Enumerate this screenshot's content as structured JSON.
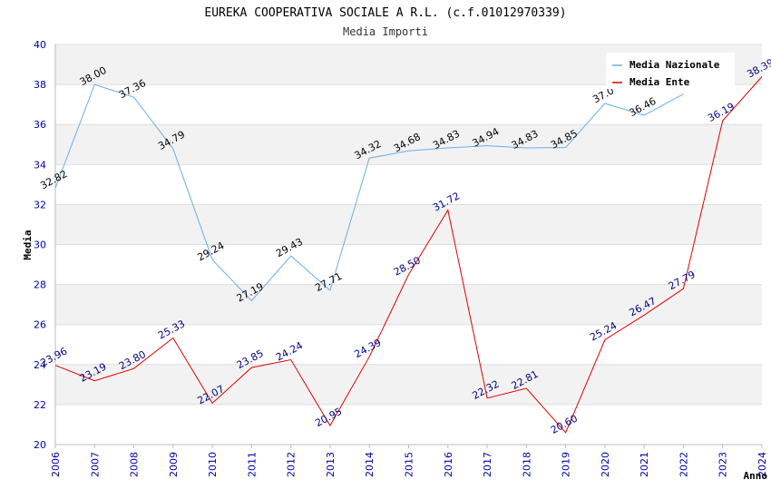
{
  "chart_data": {
    "type": "line",
    "title": "EUREKA COOPERATIVA SOCIALE A R.L. (c.f.01012970339)",
    "subtitle": "Media Importi",
    "xlabel": "Anno",
    "ylabel": "Media",
    "ylim": [
      20,
      40
    ],
    "yticks": [
      "20",
      "22",
      "24",
      "26",
      "28",
      "30",
      "32",
      "34",
      "36",
      "38",
      "40"
    ],
    "x": [
      "2006",
      "2007",
      "2008",
      "2009",
      "2010",
      "2011",
      "2012",
      "2013",
      "2014",
      "2015",
      "2016",
      "2017",
      "2018",
      "2019",
      "2020",
      "2021",
      "2022",
      "2023",
      "2024"
    ],
    "legend_position": "top-right",
    "series": [
      {
        "name": "Media Nazionale",
        "color": "#6aaee6",
        "label_color": "#000000",
        "values": [
          32.82,
          38.0,
          37.36,
          34.79,
          29.24,
          27.19,
          29.43,
          27.71,
          34.32,
          34.68,
          34.83,
          34.94,
          34.83,
          34.85,
          37.05,
          36.46,
          37.52,
          null,
          null
        ],
        "labels": [
          "32.82",
          "38.00",
          "37.36",
          "34.79",
          "29.24",
          "27.19",
          "29.43",
          "27.71",
          "34.32",
          "34.68",
          "34.83",
          "34.94",
          "34.83",
          "34.85",
          "37.0",
          "36.46",
          "",
          "",
          ""
        ]
      },
      {
        "name": "Media Ente",
        "color": "#e00000",
        "label_color": "#000080",
        "values": [
          23.96,
          23.19,
          23.8,
          25.33,
          22.07,
          23.85,
          24.24,
          20.95,
          24.39,
          28.5,
          31.72,
          22.32,
          22.81,
          20.6,
          25.24,
          26.47,
          27.79,
          36.19,
          38.39
        ],
        "labels": [
          "23.96",
          "23.19",
          "23.80",
          "25.33",
          "22.07",
          "23.85",
          "24.24",
          "20.95",
          "24.39",
          "28.50",
          "31.72",
          "22.32",
          "22.81",
          "20.60",
          "25.24",
          "26.47",
          "27.79",
          "36.19",
          "38.39"
        ]
      }
    ]
  }
}
